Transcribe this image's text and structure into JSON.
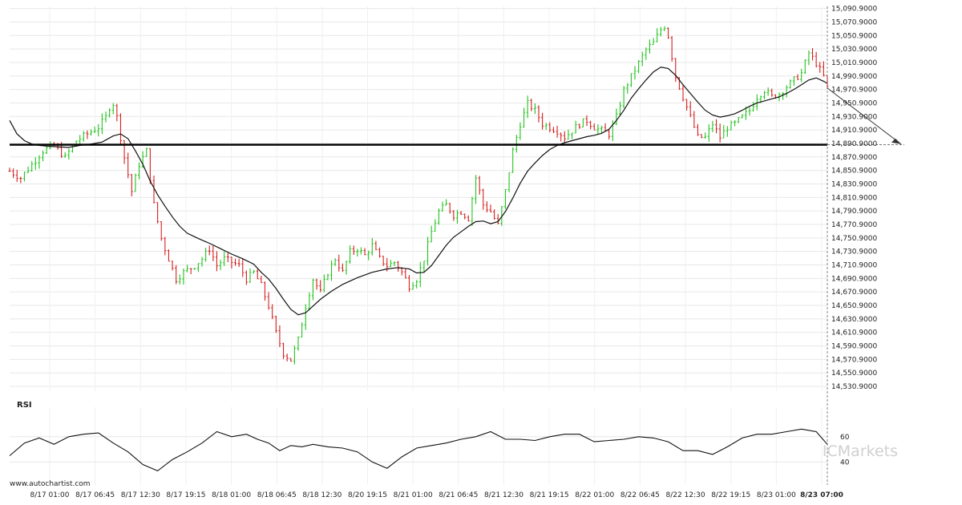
{
  "branding": {
    "source_url": "www.autochartist.com",
    "watermark": "ICMarkets"
  },
  "chart_data": [
    {
      "type": "candlestick",
      "title": "",
      "y_ticks": [
        15090.9,
        15070.9,
        15050.9,
        15030.9,
        15010.9,
        14990.9,
        14970.9,
        14950.9,
        14930.9,
        14910.9,
        14890.9,
        14870.9,
        14850.9,
        14830.9,
        14810.9,
        14790.9,
        14770.9,
        14750.9,
        14730.9,
        14710.9,
        14690.9,
        14670.9,
        14650.9,
        14630.9,
        14610.9,
        14590.9,
        14570.9,
        14550.9,
        14530.9
      ],
      "y_tick_format": "4dp",
      "ylim": [
        14525,
        15094
      ],
      "grid": true,
      "x_tick_labels": [
        "8/17 01:00",
        "8/17 06:45",
        "8/17 12:30",
        "8/17 19:15",
        "8/18 01:00",
        "8/18 06:45",
        "8/18 12:30",
        "8/20 19:15",
        "8/21 01:00",
        "8/21 06:45",
        "8/21 12:30",
        "8/21 19:15",
        "8/22 01:00",
        "8/22 06:45",
        "8/22 12:30",
        "8/22 19:15",
        "8/23 01:00",
        "8/23 07:00"
      ],
      "highlighted_x_label": "8/23 07:00",
      "support_level": 14889,
      "projection": {
        "from_price": 14973,
        "to_price": 14890
      },
      "close_path": [
        [
          0,
          14850
        ],
        [
          3,
          14840
        ],
        [
          6,
          14860
        ],
        [
          9,
          14880
        ],
        [
          12,
          14888
        ],
        [
          15,
          14870
        ],
        [
          18,
          14895
        ],
        [
          21,
          14905
        ],
        [
          24,
          14915
        ],
        [
          26,
          14930
        ],
        [
          27,
          14945
        ],
        [
          28,
          14950
        ],
        [
          29,
          14930
        ],
        [
          31,
          14870
        ],
        [
          33,
          14820
        ],
        [
          35,
          14860
        ],
        [
          37,
          14880
        ],
        [
          39,
          14800
        ],
        [
          41,
          14750
        ],
        [
          43,
          14720
        ],
        [
          45,
          14690
        ],
        [
          47,
          14700
        ],
        [
          50,
          14710
        ],
        [
          52,
          14720
        ],
        [
          54,
          14735
        ],
        [
          56,
          14710
        ],
        [
          58,
          14720
        ],
        [
          60,
          14715
        ],
        [
          62,
          14710
        ],
        [
          64,
          14690
        ],
        [
          66,
          14700
        ],
        [
          68,
          14680
        ],
        [
          70,
          14650
        ],
        [
          72,
          14610
        ],
        [
          74,
          14580
        ],
        [
          76,
          14570
        ],
        [
          78,
          14600
        ],
        [
          80,
          14650
        ],
        [
          82,
          14690
        ],
        [
          84,
          14670
        ],
        [
          86,
          14700
        ],
        [
          88,
          14720
        ],
        [
          90,
          14700
        ],
        [
          92,
          14730
        ],
        [
          94,
          14735
        ],
        [
          96,
          14725
        ],
        [
          98,
          14740
        ],
        [
          100,
          14720
        ],
        [
          102,
          14710
        ],
        [
          104,
          14715
        ],
        [
          106,
          14700
        ],
        [
          108,
          14680
        ],
        [
          110,
          14690
        ],
        [
          112,
          14720
        ],
        [
          114,
          14760
        ],
        [
          116,
          14790
        ],
        [
          118,
          14800
        ],
        [
          120,
          14785
        ],
        [
          122,
          14790
        ],
        [
          124,
          14780
        ],
        [
          126,
          14840
        ],
        [
          128,
          14800
        ],
        [
          130,
          14790
        ],
        [
          132,
          14770
        ],
        [
          134,
          14820
        ],
        [
          136,
          14880
        ],
        [
          138,
          14920
        ],
        [
          140,
          14950
        ],
        [
          142,
          14940
        ],
        [
          144,
          14920
        ],
        [
          146,
          14915
        ],
        [
          148,
          14910
        ],
        [
          150,
          14900
        ],
        [
          152,
          14910
        ],
        [
          154,
          14920
        ],
        [
          156,
          14925
        ],
        [
          158,
          14915
        ],
        [
          160,
          14910
        ],
        [
          162,
          14905
        ],
        [
          164,
          14930
        ],
        [
          166,
          14970
        ],
        [
          168,
          14990
        ],
        [
          170,
          15010
        ],
        [
          172,
          15030
        ],
        [
          174,
          15040
        ],
        [
          176,
          15060
        ],
        [
          177,
          15065
        ],
        [
          178,
          15050
        ],
        [
          180,
          14990
        ],
        [
          182,
          14960
        ],
        [
          184,
          14930
        ],
        [
          186,
          14900
        ],
        [
          188,
          14900
        ],
        [
          190,
          14920
        ],
        [
          192,
          14900
        ],
        [
          194,
          14915
        ],
        [
          196,
          14920
        ],
        [
          198,
          14930
        ],
        [
          200,
          14940
        ],
        [
          202,
          14960
        ],
        [
          204,
          14970
        ],
        [
          206,
          14960
        ],
        [
          208,
          14965
        ],
        [
          210,
          14975
        ],
        [
          212,
          14985
        ],
        [
          214,
          14995
        ],
        [
          216,
          15025
        ],
        [
          218,
          15010
        ],
        [
          220,
          14990
        ],
        [
          221,
          14973
        ]
      ],
      "moving_average_path": [
        [
          0,
          14925
        ],
        [
          2,
          14905
        ],
        [
          4,
          14895
        ],
        [
          6,
          14890
        ],
        [
          8,
          14888
        ],
        [
          10,
          14887
        ],
        [
          13,
          14886
        ],
        [
          16,
          14885
        ],
        [
          19,
          14888
        ],
        [
          22,
          14890
        ],
        [
          25,
          14893
        ],
        [
          28,
          14902
        ],
        [
          30,
          14905
        ],
        [
          32,
          14898
        ],
        [
          34,
          14880
        ],
        [
          36,
          14860
        ],
        [
          38,
          14835
        ],
        [
          40,
          14815
        ],
        [
          42,
          14798
        ],
        [
          44,
          14782
        ],
        [
          46,
          14768
        ],
        [
          48,
          14758
        ],
        [
          51,
          14750
        ],
        [
          54,
          14743
        ],
        [
          57,
          14735
        ],
        [
          60,
          14727
        ],
        [
          63,
          14720
        ],
        [
          66,
          14712
        ],
        [
          68,
          14700
        ],
        [
          70,
          14690
        ],
        [
          72,
          14676
        ],
        [
          74,
          14660
        ],
        [
          76,
          14645
        ],
        [
          78,
          14637
        ],
        [
          80,
          14640
        ],
        [
          82,
          14650
        ],
        [
          84,
          14660
        ],
        [
          87,
          14672
        ],
        [
          90,
          14682
        ],
        [
          94,
          14692
        ],
        [
          98,
          14700
        ],
        [
          102,
          14705
        ],
        [
          105,
          14707
        ],
        [
          108,
          14705
        ],
        [
          110,
          14699
        ],
        [
          112,
          14700
        ],
        [
          114,
          14710
        ],
        [
          116,
          14725
        ],
        [
          118,
          14740
        ],
        [
          120,
          14752
        ],
        [
          122,
          14760
        ],
        [
          124,
          14768
        ],
        [
          126,
          14775
        ],
        [
          128,
          14776
        ],
        [
          130,
          14772
        ],
        [
          132,
          14775
        ],
        [
          134,
          14790
        ],
        [
          136,
          14810
        ],
        [
          138,
          14832
        ],
        [
          140,
          14850
        ],
        [
          142,
          14862
        ],
        [
          144,
          14873
        ],
        [
          146,
          14882
        ],
        [
          148,
          14888
        ],
        [
          150,
          14892
        ],
        [
          152,
          14895
        ],
        [
          154,
          14898
        ],
        [
          156,
          14901
        ],
        [
          158,
          14903
        ],
        [
          160,
          14906
        ],
        [
          162,
          14912
        ],
        [
          164,
          14925
        ],
        [
          166,
          14940
        ],
        [
          168,
          14958
        ],
        [
          170,
          14972
        ],
        [
          172,
          14985
        ],
        [
          174,
          14997
        ],
        [
          176,
          15004
        ],
        [
          178,
          15002
        ],
        [
          180,
          14992
        ],
        [
          182,
          14978
        ],
        [
          184,
          14965
        ],
        [
          186,
          14952
        ],
        [
          188,
          14940
        ],
        [
          190,
          14933
        ],
        [
          192,
          14930
        ],
        [
          194,
          14932
        ],
        [
          196,
          14935
        ],
        [
          198,
          14940
        ],
        [
          200,
          14946
        ],
        [
          202,
          14951
        ],
        [
          204,
          14954
        ],
        [
          206,
          14957
        ],
        [
          208,
          14960
        ],
        [
          210,
          14965
        ],
        [
          212,
          14971
        ],
        [
          214,
          14978
        ],
        [
          216,
          14985
        ],
        [
          218,
          14988
        ],
        [
          220,
          14983
        ],
        [
          221,
          14980
        ]
      ]
    },
    {
      "type": "line",
      "title": "RSI",
      "y_ticks": [
        60,
        40
      ],
      "ylim": [
        25,
        77
      ],
      "x": [
        0,
        4,
        8,
        12,
        16,
        20,
        24,
        28,
        32,
        36,
        40,
        44,
        48,
        52,
        56,
        60,
        64,
        67,
        70,
        73,
        76,
        79,
        82,
        86,
        90,
        94,
        98,
        102,
        106,
        110,
        114,
        118,
        122,
        126,
        130,
        134,
        138,
        142,
        146,
        150,
        154,
        158,
        162,
        166,
        170,
        174,
        178,
        182,
        186,
        190,
        194,
        198,
        202,
        206,
        210,
        214,
        218,
        221
      ],
      "values": [
        45,
        55,
        59,
        54,
        60,
        62,
        63,
        55,
        48,
        38,
        33,
        42,
        48,
        55,
        64,
        60,
        62,
        58,
        55,
        49,
        53,
        52,
        54,
        52,
        51,
        48,
        40,
        35,
        44,
        51,
        53,
        55,
        58,
        60,
        64,
        58,
        58,
        57,
        60,
        62,
        62,
        56,
        57,
        58,
        60,
        59,
        56,
        49,
        49,
        46,
        52,
        59,
        62,
        62,
        64,
        66,
        64,
        54
      ]
    }
  ]
}
